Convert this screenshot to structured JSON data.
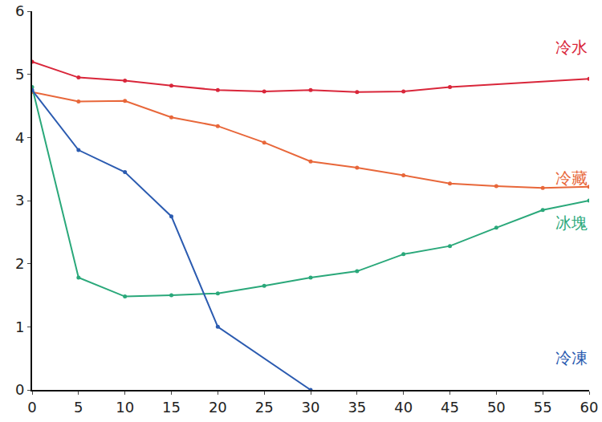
{
  "chart_data": {
    "type": "line",
    "x": [
      0,
      5,
      10,
      15,
      20,
      25,
      30,
      35,
      40,
      45,
      50,
      55,
      60
    ],
    "series": [
      {
        "name": "冷水",
        "color": "#d9263a",
        "values": [
          5.2,
          4.95,
          4.9,
          4.82,
          4.75,
          4.73,
          4.75,
          4.72,
          4.73,
          4.8,
          null,
          null,
          4.93
        ]
      },
      {
        "name": "冷藏",
        "color": "#e8673a",
        "values": [
          4.72,
          4.57,
          4.58,
          4.32,
          4.18,
          3.92,
          3.62,
          3.52,
          3.4,
          3.27,
          3.23,
          3.2,
          3.22
        ]
      },
      {
        "name": "冰塊",
        "color": "#2aa87a",
        "values": [
          4.8,
          1.78,
          1.48,
          1.5,
          1.53,
          1.65,
          1.78,
          1.88,
          2.15,
          2.28,
          2.57,
          2.85,
          3.0
        ]
      },
      {
        "name": "冷凍",
        "color": "#2b5bb0",
        "values": [
          4.75,
          3.8,
          3.45,
          2.75,
          1.0,
          null,
          0,
          null,
          null,
          null,
          null,
          null,
          null
        ]
      }
    ],
    "xlim": [
      0,
      60
    ],
    "xticks": [
      0,
      5,
      10,
      15,
      20,
      25,
      30,
      35,
      40,
      45,
      50,
      55,
      60
    ],
    "ylim": [
      0,
      6
    ],
    "yticks": [
      0,
      1,
      2,
      3,
      4,
      5,
      6
    ],
    "grid": false,
    "marker": "circle"
  }
}
